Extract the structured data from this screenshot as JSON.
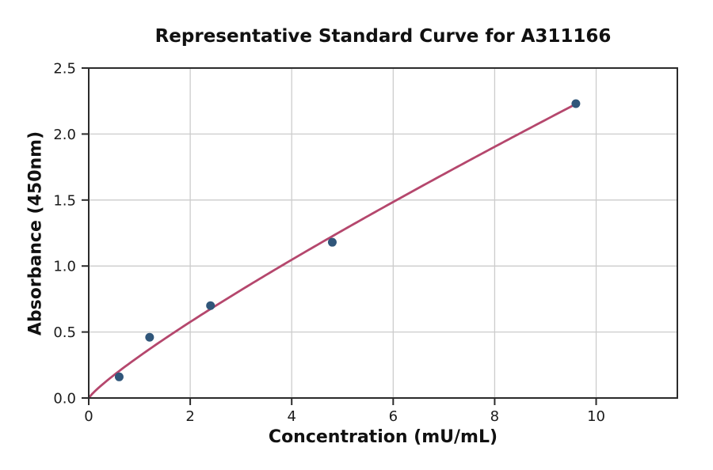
{
  "chart_data": {
    "type": "scatter",
    "title": "Representative Standard Curve for A311166",
    "xlabel": "Concentration (mU/mL)",
    "ylabel": "Absorbance (450nm)",
    "points": [
      {
        "x": 0.6,
        "y": 0.16
      },
      {
        "x": 1.2,
        "y": 0.46
      },
      {
        "x": 2.4,
        "y": 0.7
      },
      {
        "x": 4.8,
        "y": 1.18
      },
      {
        "x": 9.6,
        "y": 2.23
      }
    ],
    "fit_curve": {
      "type": "power",
      "equation": "y = 0.317 * x^0.862",
      "a": 0.317,
      "b": 0.862,
      "x_start": 0,
      "x_end": 9.6
    },
    "xlim": [
      0,
      11.6
    ],
    "ylim": [
      0,
      2.5
    ],
    "x_ticks": [
      0,
      2,
      4,
      6,
      8,
      10
    ],
    "y_ticks": [
      0,
      0.5,
      1,
      1.5,
      2,
      2.5
    ],
    "y_tick_decimals": 1,
    "grid": true,
    "legend": "none",
    "colors": {
      "point": "#30567a",
      "curve": "#b5476d",
      "grid": "#cccccc",
      "axis": "#2b2b2b",
      "text": "#1b1b1b"
    }
  }
}
